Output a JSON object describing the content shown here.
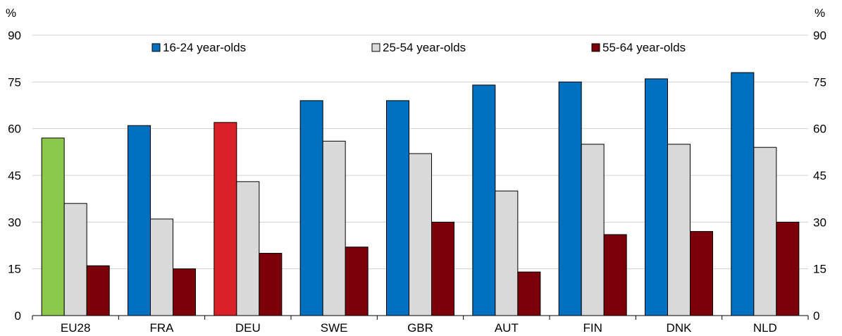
{
  "chart_data": {
    "type": "bar",
    "y_unit_left": "%",
    "y_unit_right": "%",
    "ylim": [
      0,
      90
    ],
    "yticks": [
      0,
      15,
      30,
      45,
      60,
      75,
      90
    ],
    "grid": true,
    "legend_position": "top",
    "categories": [
      "EU28",
      "FRA",
      "DEU",
      "SWE",
      "GBR",
      "AUT",
      "FIN",
      "DNK",
      "NLD"
    ],
    "series": [
      {
        "name": "16-24 year-olds",
        "color": "#0070C0",
        "values": [
          57,
          61,
          62,
          69,
          69,
          74,
          75,
          76,
          78
        ]
      },
      {
        "name": "25-54 year-olds",
        "color": "#D9D9D9",
        "values": [
          36,
          31,
          43,
          56,
          52,
          40,
          55,
          55,
          54
        ]
      },
      {
        "name": "55-64 year-olds",
        "color": "#7B0009",
        "values": [
          16,
          15,
          20,
          22,
          30,
          14,
          26,
          27,
          30
        ]
      }
    ],
    "highlight_colors": {
      "EU28": "#8CC84B",
      "DEU": "#DA2128"
    }
  }
}
